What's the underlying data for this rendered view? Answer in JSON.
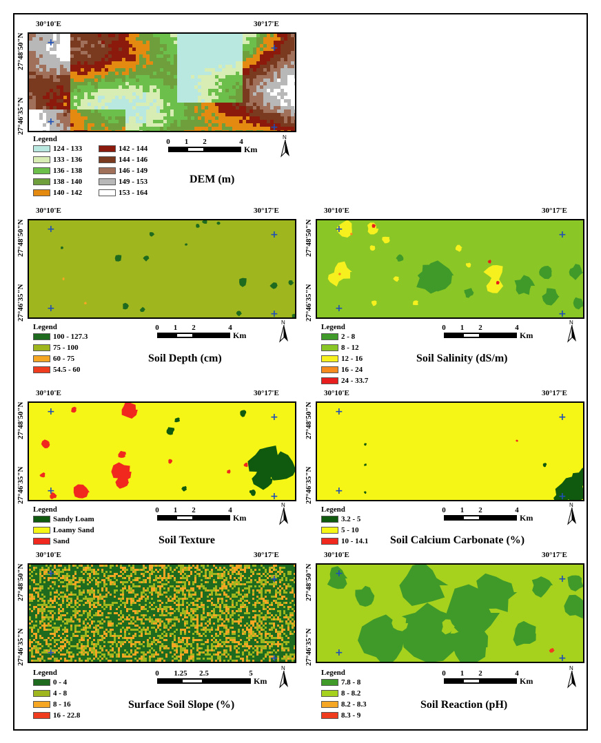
{
  "coords": {
    "lon_left": "30°10'E",
    "lon_right": "30°17'E",
    "lat_top": "27°48'50\"N",
    "lat_bottom": "27°46'35\"N"
  },
  "legend_title": "Legend",
  "north_label": "N",
  "panels": {
    "dem": {
      "caption": "DEM (m)",
      "classes": [
        {
          "label": "124 - 133",
          "color": "#b8e8e0"
        },
        {
          "label": "133 - 136",
          "color": "#d7edb4"
        },
        {
          "label": "136 - 138",
          "color": "#6bbf4a"
        },
        {
          "label": "138 - 140",
          "color": "#6f9f3c"
        },
        {
          "label": "140 - 142",
          "color": "#e58a10"
        },
        {
          "label": "142 - 144",
          "color": "#8b1a0c"
        },
        {
          "label": "144 - 146",
          "color": "#7a3a20"
        },
        {
          "label": "146 - 149",
          "color": "#a0705a"
        },
        {
          "label": "149 - 153",
          "color": "#b8b8b8"
        },
        {
          "label": "153 - 164",
          "color": "#ffffff"
        }
      ],
      "scale": {
        "ticks": [
          "0",
          "1",
          "2",
          "4"
        ],
        "unit": "Km"
      }
    },
    "depth": {
      "caption": "Soil Depth (cm)",
      "classes": [
        {
          "label": "100 - 127.3",
          "color": "#1e6a1e"
        },
        {
          "label": "75 - 100",
          "color": "#9fb61e"
        },
        {
          "label": "60 - 75",
          "color": "#f5a623"
        },
        {
          "label": "54.5 - 60",
          "color": "#f03c1e"
        }
      ],
      "scale": {
        "ticks": [
          "0",
          "1",
          "2",
          "4"
        ],
        "unit": "Km"
      }
    },
    "salinity": {
      "caption": "Soil Salinity (dS/m)",
      "classes": [
        {
          "label": "2 - 8",
          "color": "#3f9a2a"
        },
        {
          "label": "8 - 12",
          "color": "#8ac626"
        },
        {
          "label": "12 - 16",
          "color": "#f5f01e"
        },
        {
          "label": "16 - 24",
          "color": "#f58a1e"
        },
        {
          "label": "24 - 33.7",
          "color": "#e81e1e"
        }
      ],
      "scale": {
        "ticks": [
          "0",
          "1",
          "2",
          "4"
        ],
        "unit": "Km"
      }
    },
    "texture": {
      "caption": "Soil Texture",
      "classes": [
        {
          "label": "Sandy Loam",
          "color": "#0f5a0f"
        },
        {
          "label": "Loamy Sand",
          "color": "#f5f516"
        },
        {
          "label": "Sand",
          "color": "#f0281e"
        }
      ],
      "scale": {
        "ticks": [
          "0",
          "1",
          "2",
          "4"
        ],
        "unit": "Km"
      }
    },
    "calcium": {
      "caption": "Soil Calcium Carbonate (%)",
      "classes": [
        {
          "label": "3.2 - 5",
          "color": "#0f5a0f"
        },
        {
          "label": "5 - 10",
          "color": "#f5f516"
        },
        {
          "label": "10 - 14.1",
          "color": "#f0281e"
        }
      ],
      "scale": {
        "ticks": [
          "0",
          "1",
          "2",
          "4"
        ],
        "unit": "Km"
      }
    },
    "slope": {
      "caption": "Surface Soil Slope (%)",
      "classes": [
        {
          "label": "0 - 4",
          "color": "#1e6a1e"
        },
        {
          "label": "4 - 8",
          "color": "#9fb61e"
        },
        {
          "label": "8 - 16",
          "color": "#f5a623"
        },
        {
          "label": "16 - 22.8",
          "color": "#f03c1e"
        }
      ],
      "scale": {
        "ticks": [
          "0",
          "1.25",
          "2.5",
          "5"
        ],
        "unit": "Km"
      }
    },
    "ph": {
      "caption": "Soil Reaction (pH)",
      "classes": [
        {
          "label": "7.8 - 8",
          "color": "#3f9a2a"
        },
        {
          "label": "8 - 8.2",
          "color": "#a6d21e"
        },
        {
          "label": "8.2 - 8.3",
          "color": "#f5a623"
        },
        {
          "label": "8.3 - 9",
          "color": "#f03c1e"
        }
      ],
      "scale": {
        "ticks": [
          "0",
          "1",
          "2",
          "4"
        ],
        "unit": "Km"
      }
    }
  }
}
